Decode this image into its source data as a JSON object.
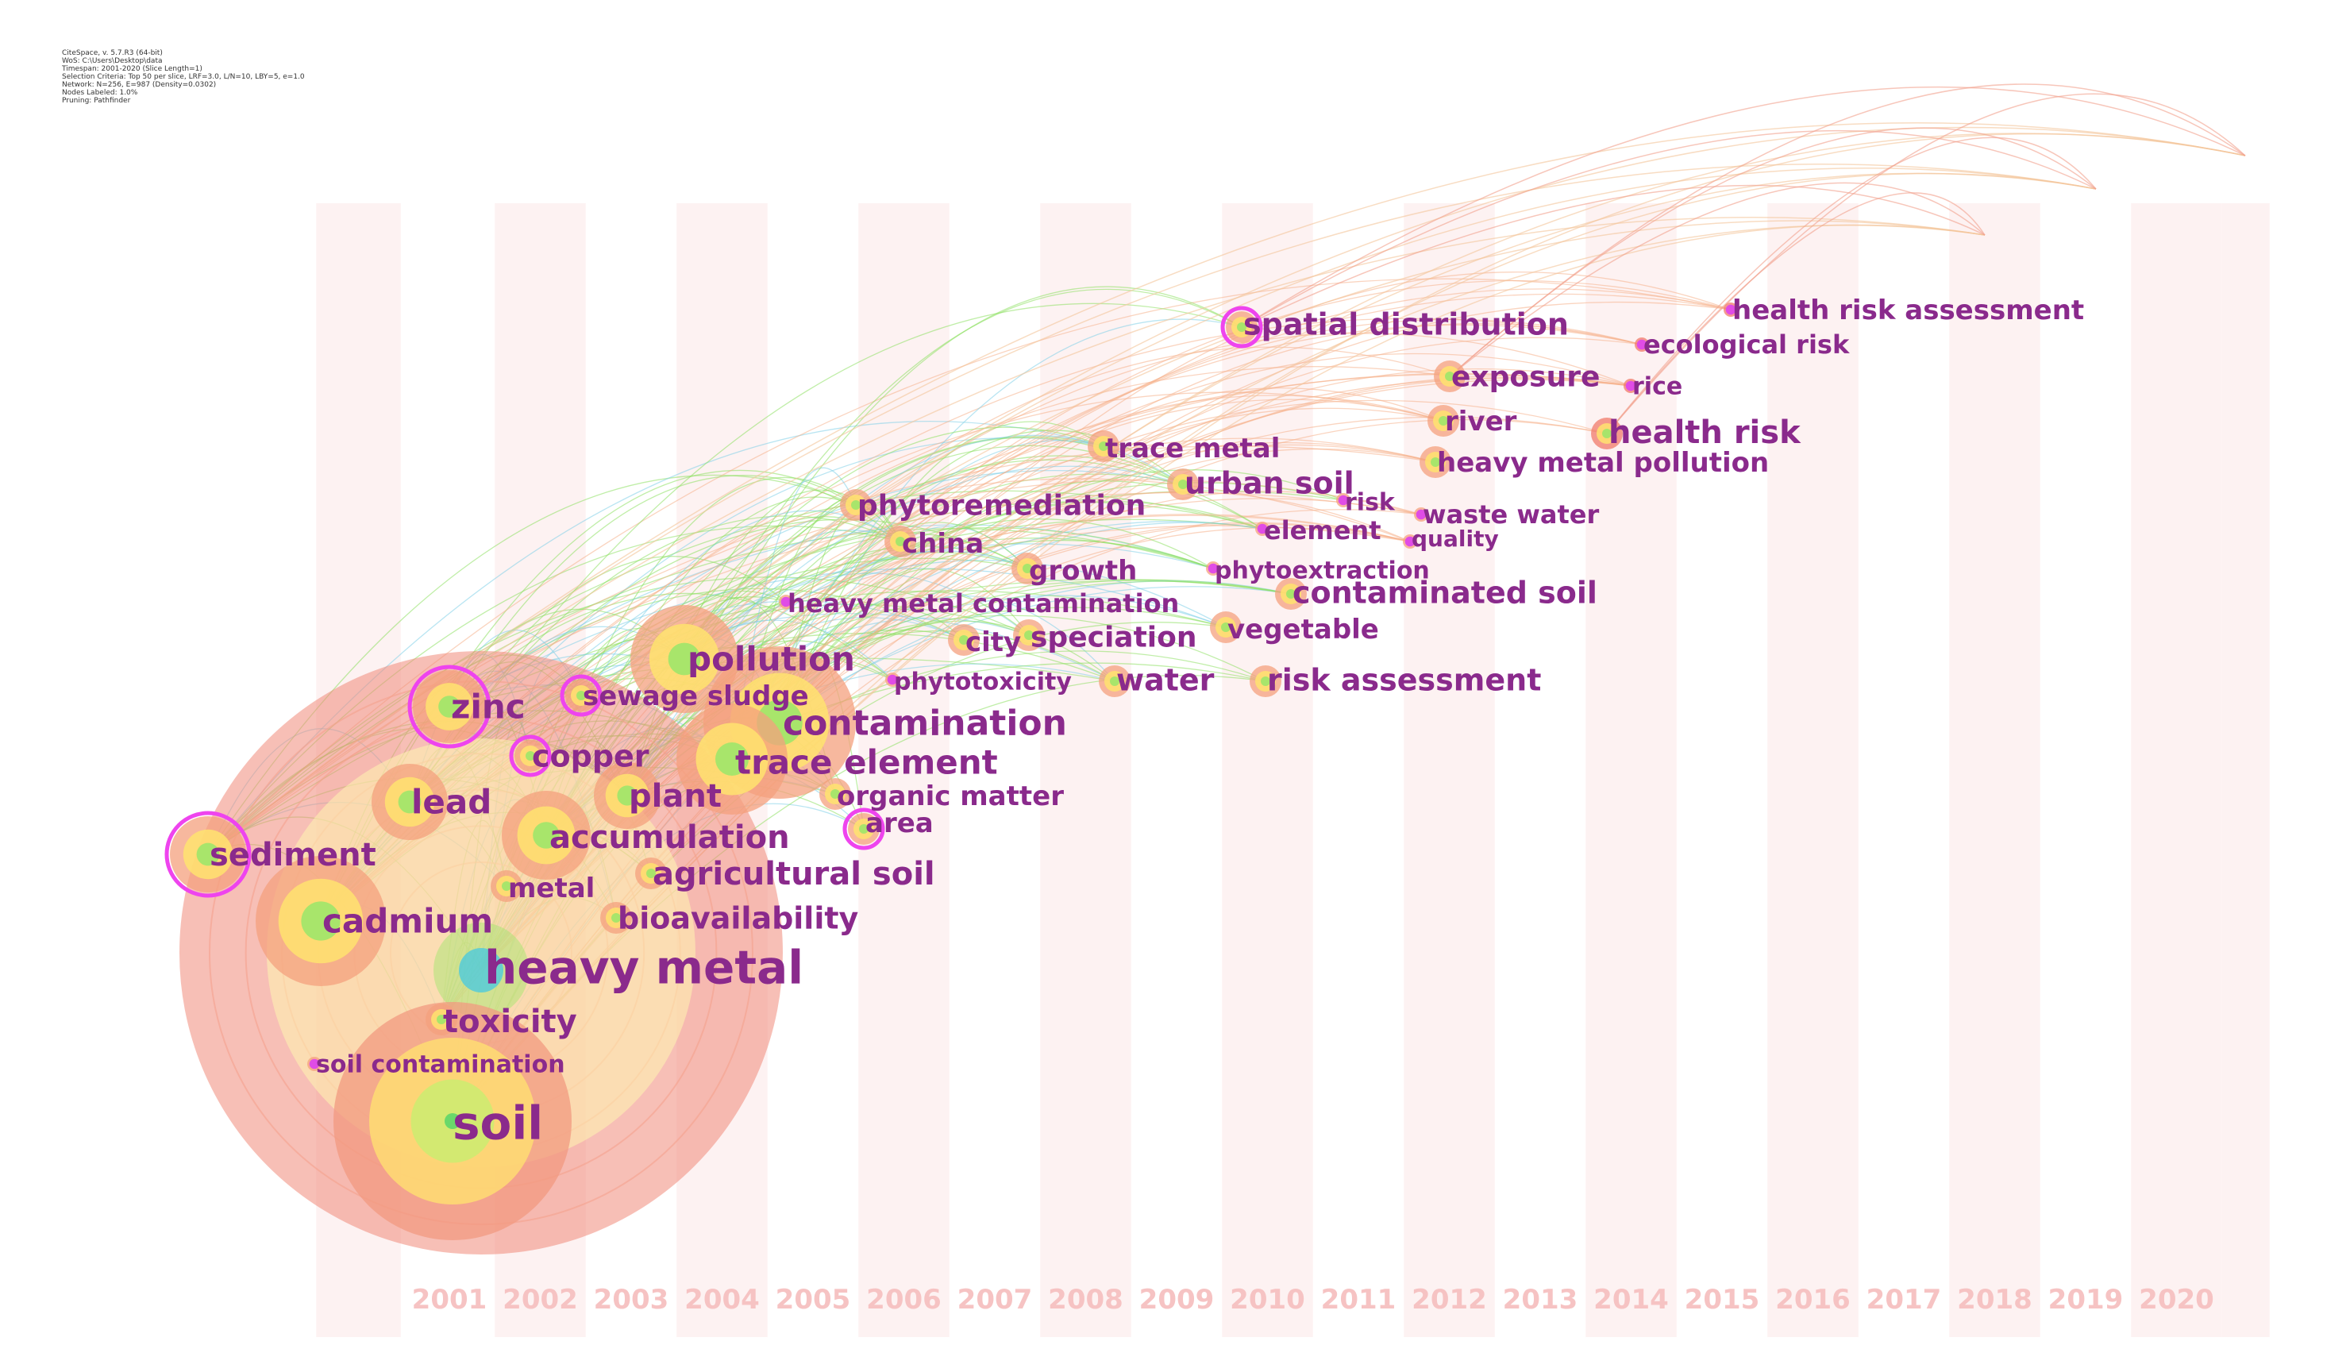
{
  "meta_lines": [
    "CiteSpace, v. 5.7.R3 (64-bit)",
    "WoS: C:\\Users\\Desktop\\data",
    "Timespan: 2001-2020 (Slice Length=1)",
    "Selection Criteria: Top 50 per slice, LRF=3.0, L/N=10, LBY=5, e=1.0",
    "Network: N=256, E=987 (Density=0.0302)",
    "Nodes Labeled: 1.0%",
    "Pruning: Pathfinder"
  ],
  "colors": {
    "year_label": "#f6c3c3",
    "keyword_label": "#8a2a8c",
    "stripe": "#fdf2f2",
    "ring_outer": "#f08a7a",
    "ring_inner": "#ffe36e",
    "ring_core": "#9ee66a",
    "ring_center": "#3cc8e8",
    "magenta_ring": "#ee44ee",
    "link_green": "#8ce060",
    "link_orange": "#f5b08a"
  },
  "years": [
    "2001",
    "2002",
    "2003",
    "2004",
    "2005",
    "2006",
    "2007",
    "2008",
    "2009",
    "2010",
    "2011",
    "2012",
    "2013",
    "2014",
    "2015",
    "2016",
    "2017",
    "2018",
    "2019",
    "2020"
  ],
  "keywords": [
    {
      "label": "heavy metal",
      "year": 2001,
      "size": "xl"
    },
    {
      "label": "soil",
      "year": 2001,
      "size": "xl"
    },
    {
      "label": "cadmium",
      "year": 2001,
      "size": "l"
    },
    {
      "label": "sediment",
      "year": 2001,
      "size": "l"
    },
    {
      "label": "toxicity",
      "year": 2001,
      "size": "m"
    },
    {
      "label": "soil contamination",
      "year": 2001,
      "size": "s"
    },
    {
      "label": "zinc",
      "year": 2001,
      "size": "l"
    },
    {
      "label": "lead",
      "year": 2001,
      "size": "l"
    },
    {
      "label": "copper",
      "year": 2002,
      "size": "m"
    },
    {
      "label": "accumulation",
      "year": 2002,
      "size": "l"
    },
    {
      "label": "metal",
      "year": 2002,
      "size": "m"
    },
    {
      "label": "plant",
      "year": 2003,
      "size": "l"
    },
    {
      "label": "bioavailability",
      "year": 2003,
      "size": "m"
    },
    {
      "label": "agricultural soil",
      "year": 2003,
      "size": "m"
    },
    {
      "label": "sewage sludge",
      "year": 2003,
      "size": "m"
    },
    {
      "label": "pollution",
      "year": 2003,
      "size": "l"
    },
    {
      "label": "contamination",
      "year": 2004,
      "size": "l"
    },
    {
      "label": "trace element",
      "year": 2004,
      "size": "l"
    },
    {
      "label": "organic matter",
      "year": 2005,
      "size": "m"
    },
    {
      "label": "area",
      "year": 2005,
      "size": "m"
    },
    {
      "label": "phytotoxicity",
      "year": 2006,
      "size": "s"
    },
    {
      "label": "heavy metal contamination",
      "year": 2006,
      "size": "s"
    },
    {
      "label": "phytoremediation",
      "year": 2006,
      "size": "m"
    },
    {
      "label": "china",
      "year": 2006,
      "size": "m"
    },
    {
      "label": "city",
      "year": 2007,
      "size": "m"
    },
    {
      "label": "speciation",
      "year": 2007,
      "size": "m"
    },
    {
      "label": "growth",
      "year": 2007,
      "size": "m"
    },
    {
      "label": "water",
      "year": 2008,
      "size": "m"
    },
    {
      "label": "trace metal",
      "year": 2008,
      "size": "m"
    },
    {
      "label": "urban soil",
      "year": 2009,
      "size": "m"
    },
    {
      "label": "phytoextraction",
      "year": 2009,
      "size": "s"
    },
    {
      "label": "vegetable",
      "year": 2009,
      "size": "m"
    },
    {
      "label": "risk assessment",
      "year": 2010,
      "size": "m"
    },
    {
      "label": "contaminated soil",
      "year": 2010,
      "size": "m"
    },
    {
      "label": "spatial distribution",
      "year": 2010,
      "size": "m"
    },
    {
      "label": "element",
      "year": 2011,
      "size": "s"
    },
    {
      "label": "risk",
      "year": 2011,
      "size": "s"
    },
    {
      "label": "waste water",
      "year": 2012,
      "size": "s"
    },
    {
      "label": "quality",
      "year": 2012,
      "size": "s"
    },
    {
      "label": "heavy metal pollution",
      "year": 2012,
      "size": "m"
    },
    {
      "label": "river",
      "year": 2012,
      "size": "m"
    },
    {
      "label": "exposure",
      "year": 2012,
      "size": "m"
    },
    {
      "label": "health risk",
      "year": 2014,
      "size": "m"
    },
    {
      "label": "rice",
      "year": 2014,
      "size": "s"
    },
    {
      "label": "ecological risk",
      "year": 2014,
      "size": "s"
    },
    {
      "label": "health risk assessment",
      "year": 2015,
      "size": "s"
    }
  ]
}
